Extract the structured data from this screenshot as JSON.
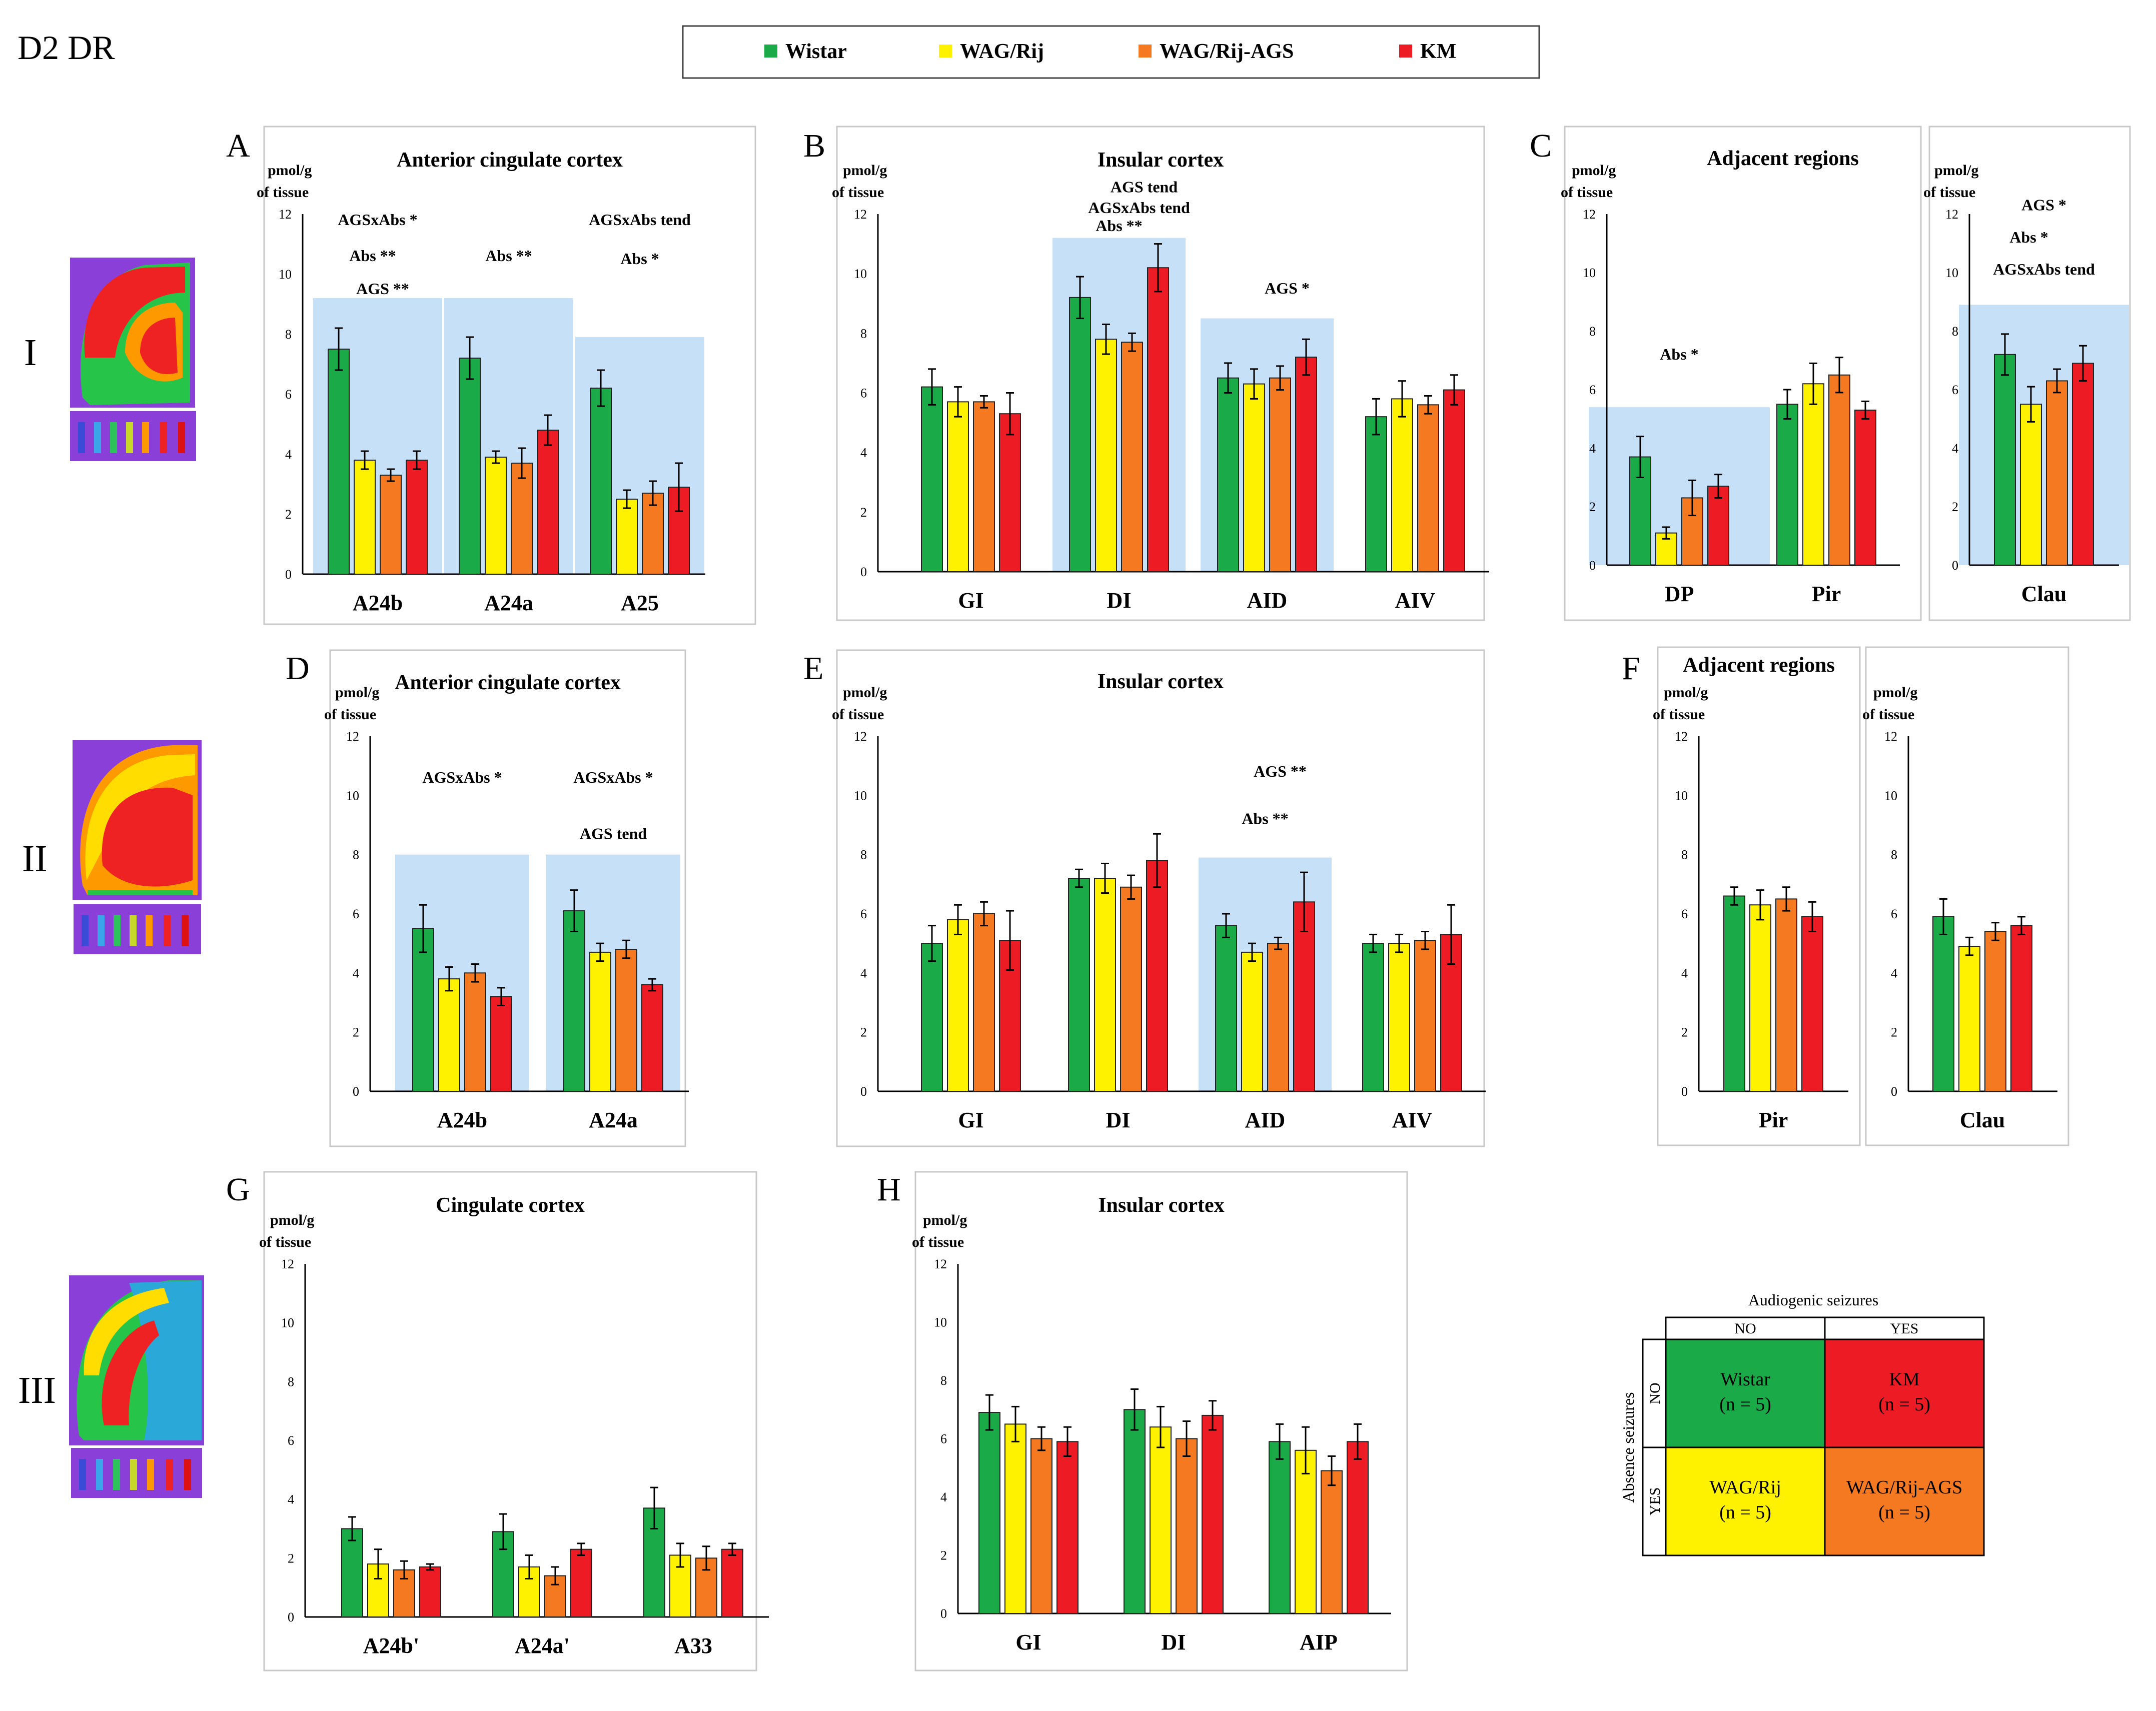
{
  "figure_title": "D2 DR",
  "legend": [
    {
      "name": "Wistar",
      "color": "#1aab48"
    },
    {
      "name": "WAG/Rij",
      "color": "#fff200"
    },
    {
      "name": "WAG/Rij-AGS",
      "color": "#f47920"
    },
    {
      "name": "KM",
      "color": "#ed1c24"
    }
  ],
  "row_labels": [
    "I",
    "II",
    "III"
  ],
  "ylabel": "pmol/g of tissue",
  "chart_data": [
    {
      "panel": "A",
      "type": "bar",
      "title": "Anterior cingulate cortex",
      "ylabel": "pmol/g of tissue",
      "ylim": [
        0,
        12
      ],
      "yticks": [
        0,
        2,
        4,
        6,
        8,
        10,
        12
      ],
      "categories": [
        "A24b",
        "A24a",
        "A25"
      ],
      "series": [
        {
          "name": "Wistar",
          "values": [
            7.5,
            7.2,
            6.2
          ],
          "errors": [
            0.7,
            0.7,
            0.6
          ]
        },
        {
          "name": "WAG/Rij",
          "values": [
            3.8,
            3.9,
            2.5
          ],
          "errors": [
            0.3,
            0.2,
            0.3
          ]
        },
        {
          "name": "WAG/Rij-AGS",
          "values": [
            3.3,
            3.7,
            2.7
          ],
          "errors": [
            0.2,
            0.5,
            0.4
          ]
        },
        {
          "name": "KM",
          "values": [
            3.8,
            4.8,
            2.9
          ],
          "errors": [
            0.3,
            0.5,
            0.8
          ]
        }
      ],
      "highlight": [
        {
          "cat": 0,
          "top": 9.2
        },
        {
          "cat": 1,
          "top": 9.2
        },
        {
          "cat": 2,
          "top": 7.9
        }
      ],
      "annotations": [
        {
          "cat": 0,
          "lines": [
            "AGSxAbs *",
            "Abs **",
            "AGS **"
          ],
          "y": [
            11.8,
            10.6,
            9.5
          ],
          "dx": [
            0,
            -0.1,
            0.1
          ]
        },
        {
          "cat": 1,
          "lines": [
            "Abs **"
          ],
          "y": [
            10.6
          ],
          "dx": [
            0
          ]
        },
        {
          "cat": 2,
          "lines": [
            "AGSxAbs tend",
            "Abs *"
          ],
          "y": [
            11.8,
            10.5
          ],
          "dx": [
            0,
            0
          ]
        }
      ]
    },
    {
      "panel": "B",
      "type": "bar",
      "title": "Insular cortex",
      "ylabel": "pmol/g of tissue",
      "ylim": [
        0,
        12
      ],
      "yticks": [
        0,
        2,
        4,
        6,
        8,
        10,
        12
      ],
      "categories": [
        "GI",
        "DI",
        "AID",
        "AIV"
      ],
      "series": [
        {
          "name": "Wistar",
          "values": [
            6.2,
            9.2,
            6.5,
            5.2
          ],
          "errors": [
            0.6,
            0.7,
            0.5,
            0.6
          ]
        },
        {
          "name": "WAG/Rij",
          "values": [
            5.7,
            7.8,
            6.3,
            5.8
          ],
          "errors": [
            0.5,
            0.5,
            0.5,
            0.6
          ]
        },
        {
          "name": "WAG/Rij-AGS",
          "values": [
            5.7,
            7.7,
            6.5,
            5.6
          ],
          "errors": [
            0.2,
            0.3,
            0.4,
            0.3
          ]
        },
        {
          "name": "KM",
          "values": [
            5.3,
            10.2,
            7.2,
            6.1
          ],
          "errors": [
            0.7,
            0.8,
            0.6,
            0.5
          ]
        }
      ],
      "highlight": [
        {
          "cat": 1,
          "top": 11.2
        },
        {
          "cat": 2,
          "top": 8.5
        }
      ],
      "annotations": [
        {
          "cat": 1,
          "lines": [
            "AGS tend",
            "AGSxAbs tend",
            "Abs **"
          ],
          "y": [
            12.9,
            12.2,
            11.6
          ],
          "dx": [
            0.5,
            0.4,
            0
          ]
        },
        {
          "cat": 2,
          "lines": [
            "AGS *"
          ],
          "y": [
            9.5
          ],
          "dx": [
            0.4
          ]
        }
      ]
    },
    {
      "panel": "C",
      "type": "bar",
      "title": "Adjacent regions",
      "ylabel": "pmol/g of tissue",
      "ylim": [
        0,
        12
      ],
      "yticks": [
        0,
        2,
        4,
        6,
        8,
        10,
        12
      ],
      "categories": [
        "DP",
        "Pir"
      ],
      "series": [
        {
          "name": "Wistar",
          "values": [
            3.7,
            5.5
          ],
          "errors": [
            0.7,
            0.5
          ]
        },
        {
          "name": "WAG/Rij",
          "values": [
            1.1,
            6.2
          ],
          "errors": [
            0.2,
            0.7
          ]
        },
        {
          "name": "WAG/Rij-AGS",
          "values": [
            2.3,
            6.5
          ],
          "errors": [
            0.6,
            0.6
          ]
        },
        {
          "name": "KM",
          "values": [
            2.7,
            5.3
          ],
          "errors": [
            0.4,
            0.3
          ]
        }
      ],
      "highlight": [
        {
          "cat": 0,
          "top": 5.4
        }
      ],
      "annotations": [
        {
          "cat": 0,
          "lines": [
            "Abs *"
          ],
          "y": [
            7.2
          ],
          "dx": [
            0
          ]
        }
      ]
    },
    {
      "panel": "C",
      "type": "bar",
      "title": "",
      "ylabel": "pmol/g of tissue",
      "ylim": [
        0,
        12
      ],
      "yticks": [
        0,
        2,
        4,
        6,
        8,
        10,
        12
      ],
      "categories": [
        "Clau"
      ],
      "series": [
        {
          "name": "Wistar",
          "values": [
            7.2
          ],
          "errors": [
            0.7
          ]
        },
        {
          "name": "WAG/Rij",
          "values": [
            5.5
          ],
          "errors": [
            0.6
          ]
        },
        {
          "name": "WAG/Rij-AGS",
          "values": [
            6.3
          ],
          "errors": [
            0.4
          ]
        },
        {
          "name": "KM",
          "values": [
            6.9
          ],
          "errors": [
            0.6
          ]
        }
      ],
      "highlight": [
        {
          "cat": 0,
          "top": 8.9
        }
      ],
      "annotations": [
        {
          "cat": 0,
          "lines": [
            "AGS *",
            "Abs *",
            "AGSxAbs tend"
          ],
          "y": [
            12.3,
            11.2,
            10.1
          ],
          "dx": [
            0,
            -0.3,
            0
          ]
        }
      ]
    },
    {
      "panel": "D",
      "type": "bar",
      "title": "Anterior cingulate cortex",
      "ylabel": "pmol/g of tissue",
      "ylim": [
        0,
        12
      ],
      "yticks": [
        0,
        2,
        4,
        6,
        8,
        10,
        12
      ],
      "categories": [
        "A24b",
        "A24a"
      ],
      "series": [
        {
          "name": "Wistar",
          "values": [
            5.5,
            6.1
          ],
          "errors": [
            0.8,
            0.7
          ]
        },
        {
          "name": "WAG/Rij",
          "values": [
            3.8,
            4.7
          ],
          "errors": [
            0.4,
            0.3
          ]
        },
        {
          "name": "WAG/Rij-AGS",
          "values": [
            4.0,
            4.8
          ],
          "errors": [
            0.3,
            0.3
          ]
        },
        {
          "name": "KM",
          "values": [
            3.2,
            3.6
          ],
          "errors": [
            0.3,
            0.2
          ]
        }
      ],
      "highlight": [
        {
          "cat": 0,
          "top": 8.0
        },
        {
          "cat": 1,
          "top": 8.0
        }
      ],
      "annotations": [
        {
          "cat": 0,
          "lines": [
            "AGSxAbs *"
          ],
          "y": [
            10.6
          ],
          "dx": [
            0
          ]
        },
        {
          "cat": 1,
          "lines": [
            "AGSxAbs *",
            "AGS tend"
          ],
          "y": [
            10.6,
            8.7
          ],
          "dx": [
            0,
            0
          ]
        }
      ]
    },
    {
      "panel": "E",
      "type": "bar",
      "title": "Insular cortex",
      "ylabel": "pmol/g of tissue",
      "ylim": [
        0,
        12
      ],
      "yticks": [
        0,
        2,
        4,
        6,
        8,
        10,
        12
      ],
      "categories": [
        "GI",
        "DI",
        "AID",
        "AIV"
      ],
      "series": [
        {
          "name": "Wistar",
          "values": [
            5.0,
            7.2,
            5.6,
            5.0
          ],
          "errors": [
            0.6,
            0.3,
            0.4,
            0.3
          ]
        },
        {
          "name": "WAG/Rij",
          "values": [
            5.8,
            7.2,
            4.7,
            5.0
          ],
          "errors": [
            0.5,
            0.5,
            0.3,
            0.3
          ]
        },
        {
          "name": "WAG/Rij-AGS",
          "values": [
            6.0,
            6.9,
            5.0,
            5.1
          ],
          "errors": [
            0.4,
            0.4,
            0.2,
            0.3
          ]
        },
        {
          "name": "KM",
          "values": [
            5.1,
            7.8,
            6.4,
            5.3
          ],
          "errors": [
            1.0,
            0.9,
            1.0,
            1.0
          ]
        }
      ],
      "highlight": [
        {
          "cat": 2,
          "top": 7.9
        }
      ],
      "annotations": [
        {
          "cat": 2,
          "lines": [
            "AGS **",
            "Abs **"
          ],
          "y": [
            10.8,
            9.2
          ],
          "dx": [
            0.3,
            0
          ]
        }
      ]
    },
    {
      "panel": "F",
      "type": "bar",
      "title": "Adjacent regions",
      "ylabel": "pmol/g of tissue",
      "ylim": [
        0,
        12
      ],
      "yticks": [
        0,
        2,
        4,
        6,
        8,
        10,
        12
      ],
      "categories": [
        "Pir"
      ],
      "series": [
        {
          "name": "Wistar",
          "values": [
            6.6
          ],
          "errors": [
            0.3
          ]
        },
        {
          "name": "WAG/Rij",
          "values": [
            6.3
          ],
          "errors": [
            0.5
          ]
        },
        {
          "name": "WAG/Rij-AGS",
          "values": [
            6.5
          ],
          "errors": [
            0.4
          ]
        },
        {
          "name": "KM",
          "values": [
            5.9
          ],
          "errors": [
            0.5
          ]
        }
      ],
      "highlight": [],
      "annotations": []
    },
    {
      "panel": "F",
      "type": "bar",
      "title": "",
      "ylabel": "pmol/g of tissue",
      "ylim": [
        0,
        12
      ],
      "yticks": [
        0,
        2,
        4,
        6,
        8,
        10,
        12
      ],
      "categories": [
        "Clau"
      ],
      "series": [
        {
          "name": "Wistar",
          "values": [
            5.9
          ],
          "errors": [
            0.6
          ]
        },
        {
          "name": "WAG/Rij",
          "values": [
            4.9
          ],
          "errors": [
            0.3
          ]
        },
        {
          "name": "WAG/Rij-AGS",
          "values": [
            5.4
          ],
          "errors": [
            0.3
          ]
        },
        {
          "name": "KM",
          "values": [
            5.6
          ],
          "errors": [
            0.3
          ]
        }
      ],
      "highlight": [],
      "annotations": []
    },
    {
      "panel": "G",
      "type": "bar",
      "title": "Cingulate cortex",
      "ylabel": "pmol/g of tissue",
      "ylim": [
        0,
        12
      ],
      "yticks": [
        0,
        2,
        4,
        6,
        8,
        10,
        12
      ],
      "categories": [
        "A24b'",
        "A24a'",
        "A33"
      ],
      "series": [
        {
          "name": "Wistar",
          "values": [
            3.0,
            2.9,
            3.7
          ],
          "errors": [
            0.4,
            0.6,
            0.7
          ]
        },
        {
          "name": "WAG/Rij",
          "values": [
            1.8,
            1.7,
            2.1
          ],
          "errors": [
            0.5,
            0.4,
            0.4
          ]
        },
        {
          "name": "WAG/Rij-AGS",
          "values": [
            1.6,
            1.4,
            2.0
          ],
          "errors": [
            0.3,
            0.3,
            0.4
          ]
        },
        {
          "name": "KM",
          "values": [
            1.7,
            2.3,
            2.3
          ],
          "errors": [
            0.1,
            0.2,
            0.2
          ]
        }
      ],
      "highlight": [],
      "annotations": []
    },
    {
      "panel": "H",
      "type": "bar",
      "title": "Insular cortex",
      "ylabel": "pmol/g of tissue",
      "ylim": [
        0,
        12
      ],
      "yticks": [
        0,
        2,
        4,
        6,
        8,
        10,
        12
      ],
      "categories": [
        "GI",
        "DI",
        "AIP"
      ],
      "series": [
        {
          "name": "Wistar",
          "values": [
            6.9,
            7.0,
            5.9
          ],
          "errors": [
            0.6,
            0.7,
            0.6
          ]
        },
        {
          "name": "WAG/Rij",
          "values": [
            6.5,
            6.4,
            5.6
          ],
          "errors": [
            0.6,
            0.7,
            0.8
          ]
        },
        {
          "name": "WAG/Rij-AGS",
          "values": [
            6.0,
            6.0,
            4.9
          ],
          "errors": [
            0.4,
            0.6,
            0.5
          ]
        },
        {
          "name": "KM",
          "values": [
            5.9,
            6.8,
            5.9
          ],
          "errors": [
            0.5,
            0.5,
            0.6
          ]
        }
      ],
      "highlight": [],
      "annotations": []
    }
  ],
  "grid_key": {
    "title": "Audiogenic seizures",
    "col_labels": [
      "NO",
      "YES"
    ],
    "row_title": "Absence seizures",
    "row_labels": [
      "NO",
      "YES"
    ],
    "cells": [
      {
        "name": "Wistar",
        "n": "(n = 5)",
        "color": "#1aab48"
      },
      {
        "name": "KM",
        "n": "(n = 5)",
        "color": "#ed1c24"
      },
      {
        "name": "WAG/Rij",
        "n": "(n = 5)",
        "color": "#fff200"
      },
      {
        "name": "WAG/Rij-AGS",
        "n": "(n = 5)",
        "color": "#f47920"
      }
    ]
  }
}
